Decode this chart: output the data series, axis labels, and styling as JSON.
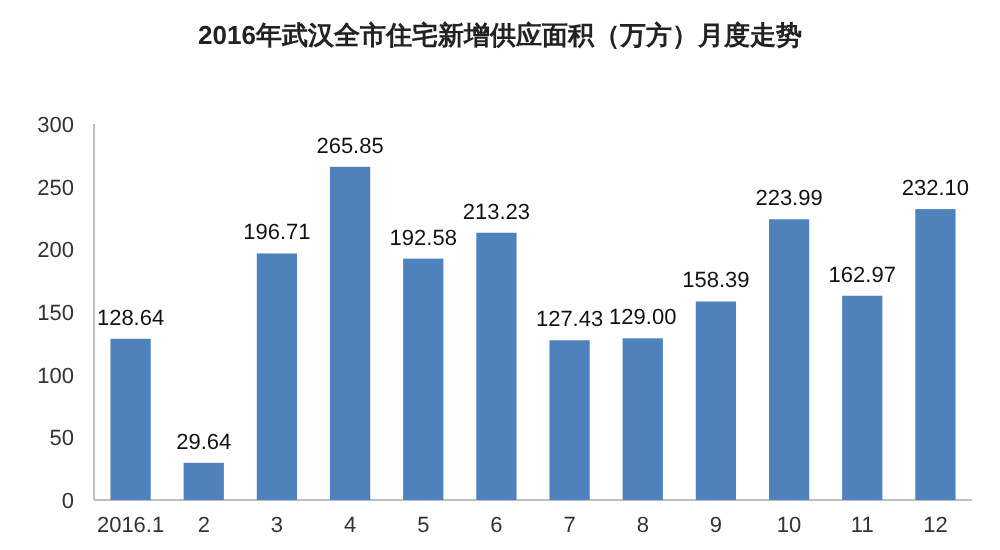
{
  "chart_data": {
    "type": "bar",
    "title": "2016年武汉全市住宅新增供应面积（万方）月度走势",
    "categories": [
      "2016.1",
      "2",
      "3",
      "4",
      "5",
      "6",
      "7",
      "8",
      "9",
      "10",
      "11",
      "12"
    ],
    "values": [
      128.64,
      29.64,
      196.71,
      265.85,
      192.58,
      213.23,
      127.43,
      129.0,
      158.39,
      223.99,
      162.97,
      232.1
    ],
    "value_labels": [
      "128.64",
      "29.64",
      "196.71",
      "265.85",
      "192.58",
      "213.23",
      "127.43",
      "129.00",
      "158.39",
      "223.99",
      "162.97",
      "232.10"
    ],
    "color": "#4f81bd",
    "ylim": [
      0,
      300
    ],
    "yticks": [
      0,
      50,
      100,
      150,
      200,
      250,
      300
    ]
  }
}
